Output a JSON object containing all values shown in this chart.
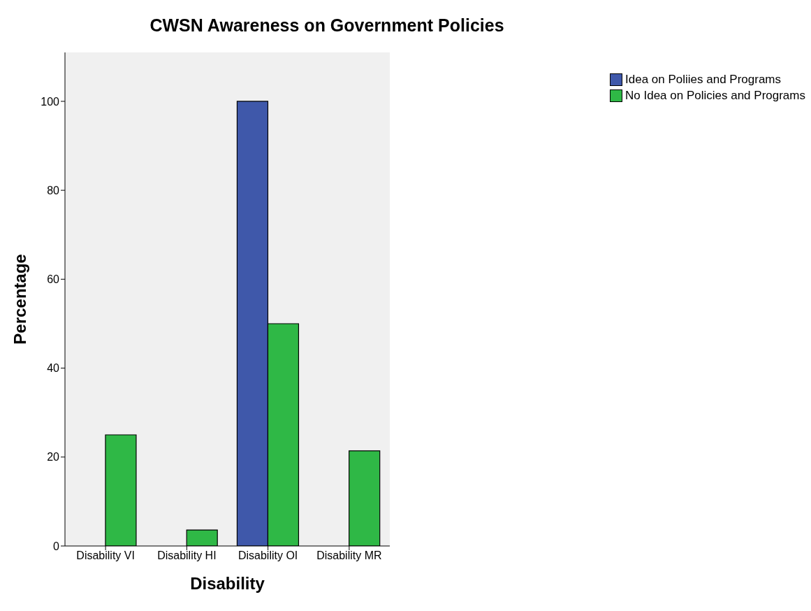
{
  "chart_data": {
    "type": "bar",
    "title": "CWSN Awareness on Government Policies",
    "xlabel": "Disability",
    "ylabel": "Percentage",
    "categories": [
      "Disability VI",
      "Disability HI",
      "Disability OI",
      "Disability MR"
    ],
    "series": [
      {
        "name": "Idea on Poliies and Programs",
        "color": "#3f58aa",
        "values": [
          0,
          0,
          100,
          0
        ]
      },
      {
        "name": "No Idea on Policies and Programs",
        "color": "#2fb846",
        "values": [
          25,
          3.6,
          50,
          21.4
        ]
      }
    ],
    "ylim": [
      0,
      111
    ],
    "yticks": [
      0,
      20,
      40,
      60,
      80,
      100
    ],
    "grid": false,
    "legend": "top right"
  }
}
